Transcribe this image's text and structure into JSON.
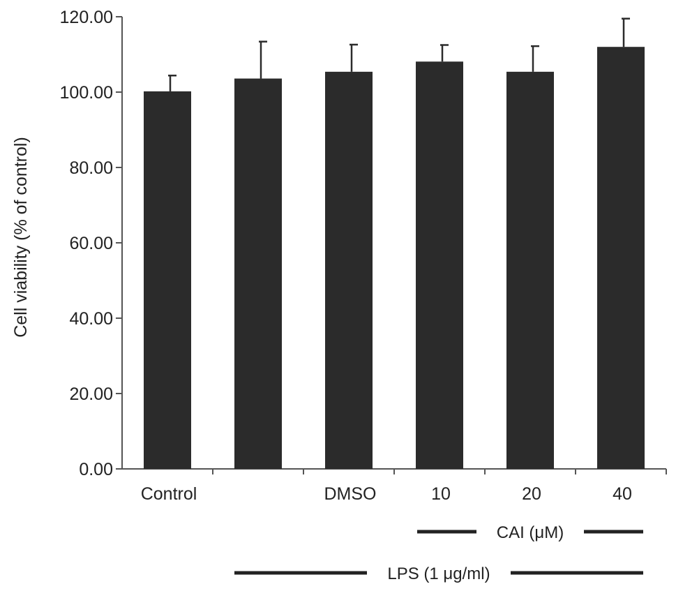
{
  "chart_data": {
    "type": "bar",
    "title": "",
    "xlabel": "",
    "ylabel": "Cell viability (% of control)",
    "ylim": [
      0,
      120
    ],
    "yticks": [
      "0.00",
      "20.00",
      "40.00",
      "60.00",
      "80.00",
      "100.00",
      "120.00"
    ],
    "categories": [
      "Control",
      "",
      "DMSO",
      "10",
      "20",
      "40"
    ],
    "values": [
      100.2,
      103.6,
      105.4,
      108.1,
      105.4,
      112.0
    ],
    "errors": [
      4.2,
      9.8,
      7.2,
      4.4,
      6.8,
      7.5
    ],
    "bar_color": "#2b2b2b",
    "grid": false,
    "legend": "none",
    "annotations": [
      {
        "label": "CAI (μM)",
        "from_category": 3,
        "to_category": 5
      },
      {
        "label": "LPS (1 μg/ml)",
        "from_category": 1,
        "to_category": 5
      }
    ]
  }
}
